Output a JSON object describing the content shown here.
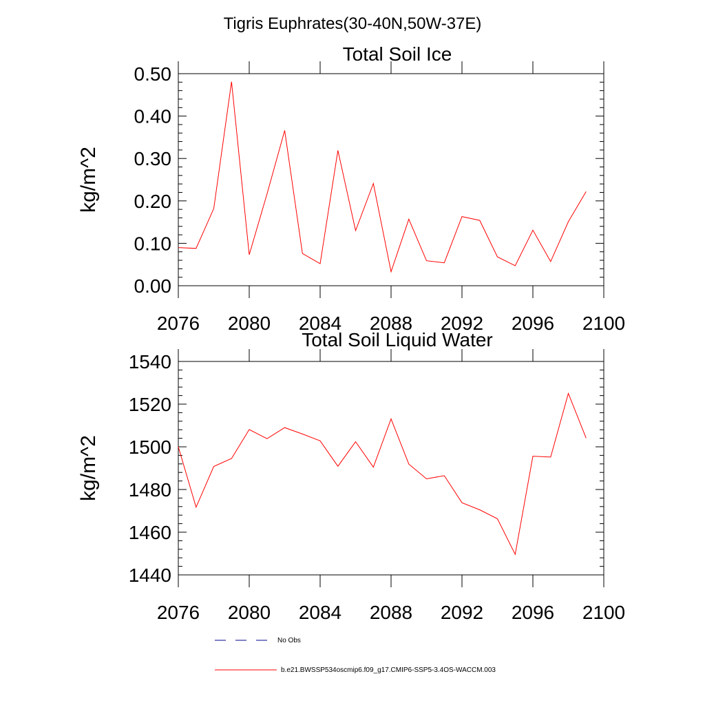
{
  "figure_title": "Tigris Euphrates(30-40N,50W-37E)",
  "colors": {
    "model_line": "#ff0000",
    "obs_line": "#00008b",
    "axis": "#000000",
    "background": "#ffffff"
  },
  "legend": {
    "entries": [
      {
        "label": "No Obs",
        "style": "dashed",
        "color": "#00008b"
      },
      {
        "label": "b.e21.BWSSP534oscmip6.f09_g17.CMIP6-SSP5-3.4OS-WACCM.003",
        "style": "solid",
        "color": "#ff0000"
      }
    ]
  },
  "chart_data": [
    {
      "type": "line",
      "title": "Total Soil Ice",
      "xlabel": "",
      "ylabel": "kg/m^2",
      "xlim": [
        2076,
        2100
      ],
      "ylim": [
        0.0,
        0.5
      ],
      "x_ticks": [
        "2076",
        "2080",
        "2084",
        "2088",
        "2092",
        "2096",
        "2100"
      ],
      "y_ticks": [
        "0.00",
        "0.10",
        "0.20",
        "0.30",
        "0.40",
        "0.50"
      ],
      "x": [
        2076,
        2077,
        2078,
        2079,
        2080,
        2081,
        2082,
        2083,
        2084,
        2085,
        2086,
        2087,
        2088,
        2089,
        2090,
        2091,
        2092,
        2093,
        2094,
        2095,
        2096,
        2097,
        2098,
        2099
      ],
      "series": [
        {
          "name": "b.e21.BWSSP534oscmip6.f09_g17.CMIP6-SSP5-3.4OS-WACCM.003",
          "values": [
            0.09,
            0.088,
            0.182,
            0.481,
            0.073,
            0.216,
            0.366,
            0.076,
            0.052,
            0.319,
            0.13,
            0.241,
            0.033,
            0.157,
            0.059,
            0.054,
            0.163,
            0.154,
            0.068,
            0.047,
            0.131,
            0.057,
            0.151,
            0.222
          ]
        }
      ]
    },
    {
      "type": "line",
      "title": "Total Soil Liquid Water",
      "xlabel": "",
      "ylabel": "kg/m^2",
      "xlim": [
        2076,
        2100
      ],
      "ylim": [
        1440,
        1540
      ],
      "x_ticks": [
        "2076",
        "2080",
        "2084",
        "2088",
        "2092",
        "2096",
        "2100"
      ],
      "y_ticks": [
        "1440",
        "1460",
        "1480",
        "1500",
        "1520",
        "1540"
      ],
      "x": [
        2076,
        2077,
        2078,
        2079,
        2080,
        2081,
        2082,
        2083,
        2084,
        2085,
        2086,
        2087,
        2088,
        2089,
        2090,
        2091,
        2092,
        2093,
        2094,
        2095,
        2096,
        2097,
        2098,
        2099
      ],
      "series": [
        {
          "name": "b.e21.BWSSP534oscmip6.f09_g17.CMIP6-SSP5-3.4OS-WACCM.003",
          "values": [
            1500.0,
            1471.7,
            1490.8,
            1494.5,
            1508.1,
            1503.8,
            1509.0,
            1506.0,
            1502.8,
            1490.9,
            1502.4,
            1490.5,
            1513.1,
            1491.9,
            1485.0,
            1486.5,
            1473.8,
            1470.5,
            1466.3,
            1449.6,
            1495.6,
            1495.2,
            1525.0,
            1504.1
          ]
        }
      ]
    }
  ]
}
